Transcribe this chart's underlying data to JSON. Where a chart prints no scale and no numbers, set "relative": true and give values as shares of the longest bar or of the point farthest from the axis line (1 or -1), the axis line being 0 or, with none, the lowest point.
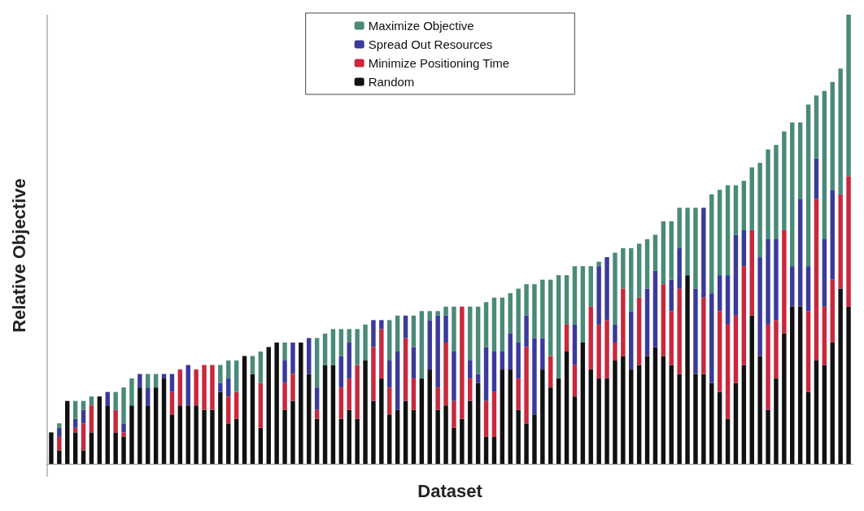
{
  "chart_data": {
    "type": "bar",
    "stacked": true,
    "relative": true,
    "xlabel": "Dataset",
    "ylabel": "Relative Objective",
    "legend": "top",
    "categories": [
      null,
      null,
      null,
      null,
      null,
      null,
      null,
      null,
      null,
      null,
      null,
      null,
      null,
      null,
      null,
      null,
      null,
      null,
      null,
      null,
      null,
      null,
      null,
      null,
      null,
      null,
      null,
      null,
      null,
      null,
      null,
      null,
      null,
      null,
      null,
      null,
      null,
      null,
      null,
      null,
      null,
      null,
      null,
      null,
      null,
      null,
      null,
      null,
      null,
      null,
      null,
      null,
      null,
      null,
      null,
      null,
      null,
      null,
      null,
      null,
      null,
      null,
      null,
      null,
      null,
      null,
      null,
      null,
      null,
      null,
      null,
      null,
      null,
      null,
      null,
      null,
      null,
      null,
      null,
      null,
      null,
      null,
      null,
      null,
      null,
      null,
      null,
      null,
      null,
      null,
      null,
      null,
      null,
      null,
      null,
      null,
      null,
      null,
      null,
      null
    ],
    "series": [
      {
        "name": "Random",
        "color": "#111111",
        "values": [
          0.07,
          0.03,
          0.14,
          0.07,
          0.03,
          0.07,
          0.15,
          0.13,
          0.07,
          0.06,
          0.13,
          0.17,
          0.13,
          0.17,
          0.19,
          0.11,
          0.13,
          0.13,
          0.13,
          0.12,
          0.12,
          0.16,
          0.09,
          0.1,
          0.24,
          0.2,
          0.08,
          0.26,
          0.27,
          0.12,
          0.14,
          0.27,
          0.2,
          0.1,
          0.22,
          0.22,
          0.1,
          0.12,
          0.1,
          0.23,
          0.14,
          0.19,
          0.11,
          0.12,
          0.14,
          0.12,
          0.19,
          0.21,
          0.12,
          0.13,
          0.08,
          0.1,
          0.14,
          0.18,
          0.06,
          0.06,
          0.21,
          0.21,
          0.12,
          0.09,
          0.11,
          0.21,
          0.17,
          0.19,
          0.25,
          0.15,
          0.27,
          0.21,
          0.19,
          0.19,
          0.23,
          0.24,
          0.21,
          0.22,
          0.24,
          0.26,
          0.24,
          0.22,
          0.2,
          0.42,
          0.2,
          0.2,
          0.18,
          0.16,
          0.1,
          0.18,
          0.22,
          0.33,
          0.24,
          0.12,
          0.19,
          0.29,
          0.35,
          0.35,
          0.16,
          0.23,
          0.22,
          0.27,
          0.39,
          0.35
        ]
      },
      {
        "name": "Minimize Positioning Time",
        "color": "#c8283c",
        "values": [
          0,
          0.03,
          0,
          0.01,
          0.06,
          0.06,
          0,
          0,
          0.05,
          0.01,
          0,
          0,
          0,
          0,
          0,
          0.05,
          0.08,
          0,
          0.08,
          0.1,
          0.1,
          0,
          0.06,
          0.06,
          0,
          0,
          0.1,
          0,
          0,
          0.06,
          0.06,
          0,
          0,
          0.02,
          0,
          0,
          0.07,
          0.07,
          0.12,
          0,
          0.12,
          0.11,
          0.06,
          0,
          0.14,
          0.07,
          0,
          0,
          0.05,
          0.14,
          0.06,
          0.25,
          0.05,
          0,
          0.08,
          0.1,
          0,
          0,
          0.07,
          0.17,
          0,
          0,
          0.07,
          0,
          0.06,
          0.07,
          0,
          0.14,
          0.12,
          0.13,
          0.04,
          0.15,
          0,
          0.15,
          0,
          0,
          0.16,
          0.12,
          0.19,
          0,
          0,
          0.17,
          0,
          0.18,
          0.21,
          0.15,
          0.22,
          0.19,
          0,
          0.19,
          0.13,
          0.23,
          0,
          0,
          0.18,
          0.36,
          0.13,
          0.14,
          0.21,
          0.29
        ]
      },
      {
        "name": "Spread Out Resources",
        "color": "#3a3a9a",
        "values": [
          0,
          0.02,
          0,
          0.02,
          0.03,
          0,
          0,
          0.03,
          0,
          0.02,
          0,
          0.03,
          0.04,
          0,
          0.01,
          0.04,
          0,
          0.09,
          0,
          0,
          0,
          0.02,
          0.04,
          0,
          0,
          0,
          0,
          0,
          0,
          0.05,
          0.07,
          0,
          0.08,
          0.05,
          0,
          0,
          0.07,
          0.08,
          0,
          0,
          0.06,
          0.02,
          0.06,
          0.13,
          0.05,
          0.07,
          0,
          0.11,
          0.16,
          0.06,
          0.11,
          0,
          0.04,
          0.02,
          0.12,
          0.09,
          0.04,
          0.08,
          0.08,
          0.07,
          0.17,
          0.07,
          0,
          0,
          0,
          0.09,
          0,
          0,
          0.13,
          0.14,
          0.04,
          0,
          0.13,
          0,
          0.15,
          0.17,
          0,
          0.07,
          0.09,
          0,
          0.19,
          0.2,
          0.2,
          0.08,
          0.11,
          0.18,
          0.08,
          0,
          0.22,
          0.19,
          0.18,
          0,
          0.09,
          0.24,
          0.1,
          0.09,
          0.15,
          0.2,
          0,
          0
        ]
      },
      {
        "name": "Maximize Objective",
        "color": "#4a8a78",
        "values": [
          0,
          0.01,
          0,
          0.04,
          0.02,
          0.02,
          0,
          0,
          0.04,
          0.08,
          0.06,
          0,
          0.03,
          0.03,
          0,
          0,
          0,
          0,
          0,
          0,
          0,
          0.04,
          0.04,
          0.07,
          0,
          0.04,
          0.07,
          0,
          0,
          0.04,
          0,
          0,
          0,
          0.11,
          0.07,
          0.08,
          0.06,
          0.03,
          0.08,
          0.08,
          0,
          0,
          0.09,
          0.08,
          0,
          0.07,
          0.15,
          0.02,
          0.01,
          0.02,
          0.1,
          0,
          0.12,
          0.15,
          0.1,
          0.12,
          0.12,
          0.09,
          0.12,
          0.07,
          0.12,
          0.13,
          0.17,
          0.23,
          0.11,
          0.13,
          0.17,
          0.09,
          0.01,
          0,
          0.16,
          0.09,
          0.14,
          0.12,
          0.11,
          0.08,
          0.14,
          0.13,
          0.09,
          0.15,
          0.18,
          0,
          0.22,
          0.19,
          0.2,
          0.11,
          0.11,
          0.14,
          0.21,
          0.2,
          0.21,
          0.22,
          0.32,
          0.17,
          0.36,
          0.14,
          0.33,
          0.24,
          0.28,
          0.36
        ]
      }
    ]
  }
}
